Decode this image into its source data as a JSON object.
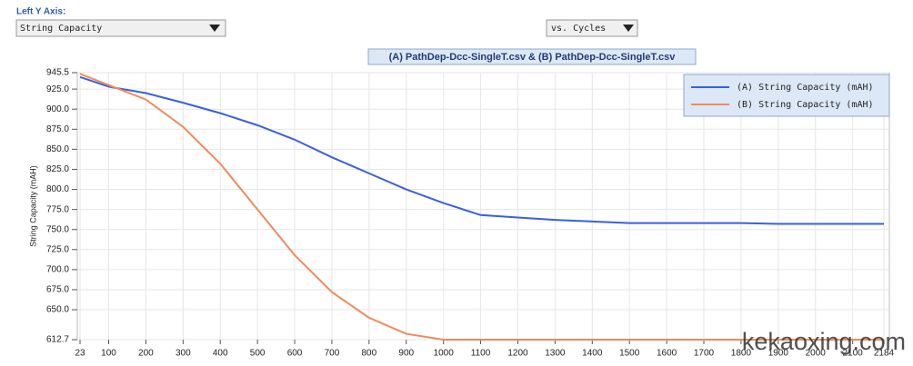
{
  "ui": {
    "left_axis_label": "Left Y Axis:",
    "left_axis_select": "String Capacity",
    "x_axis_select": "vs. Cycles"
  },
  "watermark": "kekaoxing.com",
  "chart_data": {
    "type": "line",
    "title": "(A) PathDep-Dcc-SingleT.csv & (B) PathDep-Dcc-SingleT.csv",
    "y_label": "String Capacity (mAH)",
    "x": [
      23,
      100,
      200,
      300,
      400,
      500,
      600,
      700,
      800,
      900,
      1000,
      1100,
      1200,
      1300,
      1400,
      1500,
      1600,
      1700,
      1800,
      1900,
      2000,
      2100,
      2184
    ],
    "series": [
      {
        "name": "(A) String Capacity (mAH)",
        "color": "#3a5fe0",
        "values": [
          940,
          928,
          920,
          908,
          895,
          880,
          862,
          840,
          820,
          800,
          783,
          768,
          765,
          762,
          760,
          758,
          758,
          758,
          758,
          757,
          757,
          757,
          757
        ]
      },
      {
        "name": "(B) String Capacity (mAH)",
        "color": "#f08a5d",
        "values": [
          944,
          930,
          912,
          878,
          832,
          775,
          718,
          672,
          640,
          620,
          612.7,
          612.7,
          612.7,
          612.7,
          612.7,
          612.7,
          612.7,
          612.7,
          612.7,
          612.7,
          612.7,
          612.7,
          612.7
        ]
      }
    ],
    "xlim": [
      23,
      2184
    ],
    "ylim": [
      612.7,
      945.5
    ],
    "xticks": [
      23,
      100,
      200,
      300,
      400,
      500,
      600,
      700,
      800,
      900,
      1000,
      1100,
      1200,
      1300,
      1400,
      1500,
      1600,
      1700,
      1800,
      1900,
      2000,
      2100,
      2184
    ],
    "yticks": [
      612.7,
      {
        "value": 650,
        "label": "650.0"
      },
      {
        "value": 675,
        "label": "675.0"
      },
      {
        "value": 700,
        "label": "700.0"
      },
      {
        "value": 725,
        "label": "725.0"
      },
      {
        "value": 750,
        "label": "750.0"
      },
      {
        "value": 775,
        "label": "775.0"
      },
      {
        "value": 800,
        "label": "800.0"
      },
      {
        "value": 825,
        "label": "825.0"
      },
      {
        "value": 850,
        "label": "850.0"
      },
      {
        "value": 875,
        "label": "875.0"
      },
      {
        "value": 900,
        "label": "900.0"
      },
      {
        "value": 925,
        "label": "925.0"
      },
      945.5
    ],
    "grid": true,
    "legend": "upper right"
  }
}
